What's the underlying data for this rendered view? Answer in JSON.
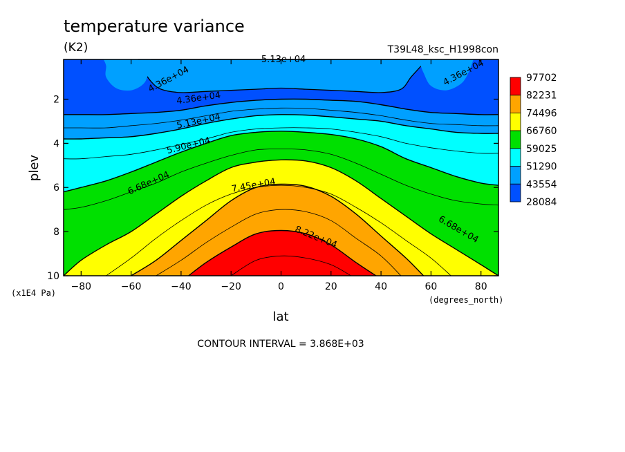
{
  "chart_data": {
    "type": "contour",
    "title": "temperature variance",
    "units": "(K2)",
    "case_name": "T39L48_ksc_H1998con",
    "xlabel": "lat",
    "xunits": "(degrees_north)",
    "ylabel": "plev",
    "yunits": "(x1E4 Pa)",
    "xlim": [
      -87,
      87
    ],
    "ylim": [
      0.2,
      10
    ],
    "y_inverted": true,
    "x_ticks": [
      -80,
      -60,
      -40,
      -20,
      0,
      20,
      40,
      60,
      80
    ],
    "x_tick_labels": [
      "−80",
      "−60",
      "−40",
      "−20",
      "0",
      "20",
      "40",
      "60",
      "80"
    ],
    "y_ticks": [
      2,
      4,
      6,
      8,
      10
    ],
    "y_tick_labels": [
      "2",
      "4",
      "6",
      "8",
      "10"
    ],
    "contour_interval_text": "CONTOUR INTERVAL = 3.868E+03",
    "legend": {
      "levels": [
        "97702",
        "82231",
        "74496",
        "66760",
        "59025",
        "51290",
        "43554",
        "28084"
      ],
      "colors": [
        "#ff0000",
        "#ffa500",
        "#ffff00",
        "#00e000",
        "#00ffff",
        "#00a0ff",
        "#0050ff"
      ]
    },
    "filled_bands": [
      {
        "range": [
          82231,
          97702
        ],
        "color": "#ff0000",
        "boundary": [
          [
            -37,
            10
          ],
          [
            -30,
            9.4
          ],
          [
            -20,
            8.7
          ],
          [
            -10,
            8.1
          ],
          [
            0,
            7.95
          ],
          [
            10,
            8.1
          ],
          [
            20,
            8.6
          ],
          [
            30,
            9.4
          ],
          [
            38,
            10
          ]
        ]
      },
      {
        "range": [
          74496,
          82231
        ],
        "color": "#ffa500",
        "boundary": [
          [
            -60,
            10
          ],
          [
            -50,
            9.3
          ],
          [
            -40,
            8.4
          ],
          [
            -30,
            7.5
          ],
          [
            -20,
            6.6
          ],
          [
            -10,
            6.0
          ],
          [
            0,
            5.85
          ],
          [
            10,
            5.95
          ],
          [
            20,
            6.4
          ],
          [
            30,
            7.2
          ],
          [
            40,
            8.2
          ],
          [
            50,
            9.2
          ],
          [
            57,
            10
          ]
        ]
      },
      {
        "range": [
          66760,
          74496
        ],
        "color": "#ffff00",
        "boundary": [
          [
            -87,
            10
          ],
          [
            -80,
            9.3
          ],
          [
            -70,
            8.6
          ],
          [
            -60,
            8.0
          ],
          [
            -50,
            7.2
          ],
          [
            -40,
            6.4
          ],
          [
            -30,
            5.7
          ],
          [
            -20,
            5.1
          ],
          [
            -10,
            4.85
          ],
          [
            0,
            4.75
          ],
          [
            10,
            4.8
          ],
          [
            20,
            5.1
          ],
          [
            30,
            5.7
          ],
          [
            40,
            6.5
          ],
          [
            50,
            7.3
          ],
          [
            60,
            8.1
          ],
          [
            70,
            8.8
          ],
          [
            80,
            9.5
          ],
          [
            87,
            10
          ]
        ]
      },
      {
        "range": [
          59025,
          66760
        ],
        "color": "#00e000",
        "boundary": [
          [
            -87,
            6.2
          ],
          [
            -80,
            6.0
          ],
          [
            -70,
            5.7
          ],
          [
            -60,
            5.3
          ],
          [
            -50,
            4.85
          ],
          [
            -40,
            4.4
          ],
          [
            -30,
            4.0
          ],
          [
            -20,
            3.65
          ],
          [
            -10,
            3.5
          ],
          [
            0,
            3.45
          ],
          [
            10,
            3.5
          ],
          [
            20,
            3.6
          ],
          [
            30,
            3.8
          ],
          [
            40,
            4.15
          ],
          [
            50,
            4.7
          ],
          [
            60,
            5.1
          ],
          [
            70,
            5.5
          ],
          [
            80,
            5.8
          ],
          [
            87,
            5.9
          ]
        ]
      },
      {
        "range": [
          51290,
          59025
        ],
        "color": "#00ffff",
        "boundary": [
          [
            -87,
            3.8
          ],
          [
            -80,
            3.8
          ],
          [
            -70,
            3.75
          ],
          [
            -60,
            3.7
          ],
          [
            -50,
            3.55
          ],
          [
            -40,
            3.35
          ],
          [
            -30,
            3.1
          ],
          [
            -20,
            2.9
          ],
          [
            -10,
            2.75
          ],
          [
            0,
            2.7
          ],
          [
            10,
            2.72
          ],
          [
            20,
            2.8
          ],
          [
            30,
            2.9
          ],
          [
            40,
            3.0
          ],
          [
            50,
            3.2
          ],
          [
            60,
            3.35
          ],
          [
            70,
            3.5
          ],
          [
            80,
            3.55
          ],
          [
            87,
            3.55
          ]
        ]
      },
      {
        "range": [
          43554,
          51290
        ],
        "color": "#00a0ff",
        "boundary": [
          [
            -87,
            2.7
          ],
          [
            -80,
            2.7
          ],
          [
            -70,
            2.7
          ],
          [
            -60,
            2.65
          ],
          [
            -50,
            2.6
          ],
          [
            -40,
            2.5
          ],
          [
            -30,
            2.3
          ],
          [
            -20,
            2.15
          ],
          [
            -10,
            2.05
          ],
          [
            0,
            2.0
          ],
          [
            10,
            2.0
          ],
          [
            20,
            2.05
          ],
          [
            30,
            2.1
          ],
          [
            40,
            2.25
          ],
          [
            50,
            2.45
          ],
          [
            60,
            2.6
          ],
          [
            70,
            2.65
          ],
          [
            80,
            2.7
          ],
          [
            87,
            2.7
          ]
        ]
      },
      {
        "range": [
          28084,
          43554
        ],
        "color": "#0050ff",
        "boundary": null
      }
    ],
    "upper_light_region": [
      [
        -57,
        0.2
      ],
      [
        -55,
        0.7
      ],
      [
        -52,
        1.2
      ],
      [
        -48,
        1.55
      ],
      [
        -40,
        1.7
      ],
      [
        -30,
        1.65
      ],
      [
        -20,
        1.6
      ],
      [
        -10,
        1.55
      ],
      [
        0,
        1.5
      ],
      [
        10,
        1.55
      ],
      [
        20,
        1.6
      ],
      [
        30,
        1.65
      ],
      [
        40,
        1.7
      ],
      [
        48,
        1.55
      ],
      [
        52,
        1.0
      ],
      [
        56,
        0.5
      ],
      [
        58,
        0.2
      ]
    ],
    "upper_light_pockets": [
      [
        [
          -52,
          0.2
        ],
        [
          -53,
          0.8
        ],
        [
          -55,
          1.3
        ],
        [
          -60,
          1.6
        ],
        [
          -66,
          1.5
        ],
        [
          -70,
          1.0
        ],
        [
          -70,
          0.5
        ],
        [
          -71,
          0.2
        ]
      ],
      [
        [
          55,
          0.2
        ],
        [
          57,
          0.8
        ],
        [
          60,
          1.4
        ],
        [
          66,
          1.6
        ],
        [
          72,
          1.3
        ],
        [
          75,
          0.8
        ],
        [
          77,
          0.2
        ]
      ]
    ],
    "extra_contour_lines": [
      {
        "level": 78363,
        "points": [
          [
            -50,
            10
          ],
          [
            -40,
            9.3
          ],
          [
            -30,
            8.5
          ],
          [
            -20,
            7.8
          ],
          [
            -10,
            7.2
          ],
          [
            0,
            7.0
          ],
          [
            10,
            7.1
          ],
          [
            20,
            7.5
          ],
          [
            30,
            8.3
          ],
          [
            40,
            9.1
          ],
          [
            48,
            10
          ]
        ]
      },
      {
        "level": 70628,
        "points": [
          [
            -70,
            10
          ],
          [
            -60,
            9.2
          ],
          [
            -50,
            8.3
          ],
          [
            -40,
            7.5
          ],
          [
            -30,
            6.8
          ],
          [
            -20,
            6.3
          ],
          [
            -10,
            6.0
          ],
          [
            0,
            5.9
          ],
          [
            10,
            6.0
          ],
          [
            20,
            6.3
          ],
          [
            30,
            6.9
          ],
          [
            40,
            7.6
          ],
          [
            50,
            8.4
          ],
          [
            60,
            9.2
          ],
          [
            68,
            10
          ]
        ]
      },
      {
        "level": 62893,
        "points": [
          [
            -87,
            7.0
          ],
          [
            -80,
            6.9
          ],
          [
            -70,
            6.6
          ],
          [
            -60,
            6.2
          ],
          [
            -50,
            5.8
          ],
          [
            -40,
            5.3
          ],
          [
            -30,
            4.9
          ],
          [
            -20,
            4.55
          ],
          [
            -10,
            4.3
          ],
          [
            0,
            4.25
          ],
          [
            10,
            4.3
          ],
          [
            20,
            4.5
          ],
          [
            30,
            4.9
          ],
          [
            40,
            5.4
          ],
          [
            50,
            5.9
          ],
          [
            60,
            6.3
          ],
          [
            70,
            6.6
          ],
          [
            80,
            6.75
          ],
          [
            87,
            6.8
          ]
        ]
      },
      {
        "level": 55157,
        "points": [
          [
            -87,
            4.7
          ],
          [
            -80,
            4.7
          ],
          [
            -70,
            4.6
          ],
          [
            -60,
            4.5
          ],
          [
            -50,
            4.3
          ],
          [
            -40,
            4.05
          ],
          [
            -30,
            3.8
          ],
          [
            -20,
            3.5
          ],
          [
            -10,
            3.35
          ],
          [
            0,
            3.3
          ],
          [
            10,
            3.3
          ],
          [
            20,
            3.35
          ],
          [
            30,
            3.5
          ],
          [
            40,
            3.7
          ],
          [
            50,
            4.0
          ],
          [
            60,
            4.2
          ],
          [
            70,
            4.35
          ],
          [
            80,
            4.45
          ],
          [
            87,
            4.45
          ]
        ]
      },
      {
        "level": 47422,
        "points": [
          [
            -87,
            3.3
          ],
          [
            -80,
            3.3
          ],
          [
            -70,
            3.3
          ],
          [
            -60,
            3.2
          ],
          [
            -50,
            3.1
          ],
          [
            -40,
            2.95
          ],
          [
            -30,
            2.75
          ],
          [
            -20,
            2.55
          ],
          [
            -10,
            2.45
          ],
          [
            0,
            2.4
          ],
          [
            10,
            2.42
          ],
          [
            20,
            2.5
          ],
          [
            30,
            2.6
          ],
          [
            40,
            2.75
          ],
          [
            50,
            2.95
          ],
          [
            60,
            3.1
          ],
          [
            70,
            3.15
          ],
          [
            80,
            3.2
          ],
          [
            87,
            3.2
          ]
        ]
      },
      {
        "level": 82231,
        "points": [
          [
            -20,
            10
          ],
          [
            -10,
            9.3
          ],
          [
            0,
            9.1
          ],
          [
            10,
            9.2
          ],
          [
            20,
            9.5
          ],
          [
            28,
            10
          ]
        ]
      }
    ],
    "contour_labels": [
      {
        "text": "5.13e+04",
        "lat": 1,
        "plev": 0.2,
        "angle": 0
      },
      {
        "text": "4.36e+04",
        "lat": -45,
        "plev": 1.1,
        "angle": -28
      },
      {
        "text": "4.36e+04",
        "lat": 73,
        "plev": 0.8,
        "angle": -28
      },
      {
        "text": "4.36e+04",
        "lat": -33,
        "plev": 1.95,
        "angle": -8
      },
      {
        "text": "5.13e+04",
        "lat": -33,
        "plev": 3.0,
        "angle": -12
      },
      {
        "text": "5.90e+04",
        "lat": -37,
        "plev": 4.1,
        "angle": -14
      },
      {
        "text": "6.68e+04",
        "lat": -53,
        "plev": 5.8,
        "angle": -24
      },
      {
        "text": "7.45e+04",
        "lat": -11,
        "plev": 5.9,
        "angle": -10
      },
      {
        "text": "8.22e+04",
        "lat": 14,
        "plev": 8.25,
        "angle": 22
      },
      {
        "text": "6.68e+04",
        "lat": 71,
        "plev": 7.9,
        "angle": 30
      }
    ]
  }
}
